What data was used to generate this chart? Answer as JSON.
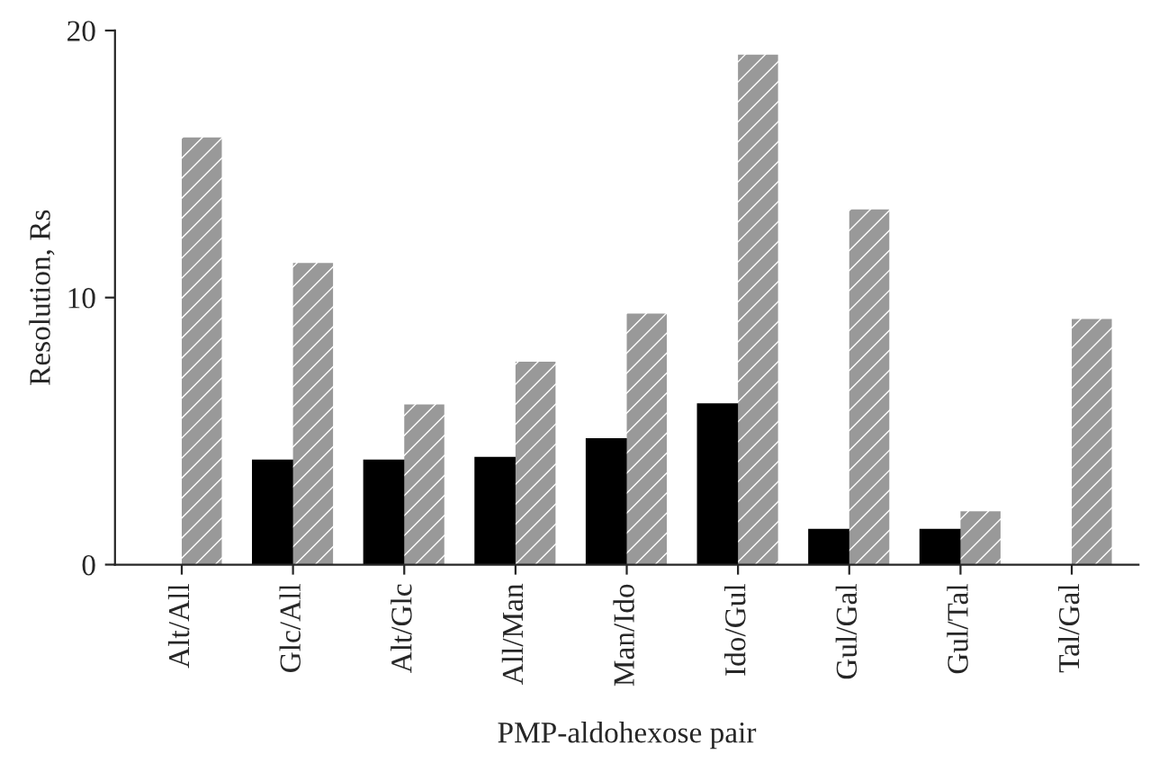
{
  "chart_data": {
    "type": "bar",
    "xlabel": "PMP-aldohexose pair",
    "ylabel": "Resolution, Rs",
    "categories": [
      "Alt/All",
      "Glc/All",
      "Alt/Glc",
      "All/Man",
      "Man/Ido",
      "Ido/Gul",
      "Gul/Gal",
      "Gul/Tal",
      "Tal/Gal"
    ],
    "series": [
      {
        "color": "#000000",
        "values": [
          null,
          3.9,
          3.9,
          4.0,
          4.7,
          6.0,
          1.3,
          1.3,
          null
        ]
      },
      {
        "color": "#999999",
        "values": [
          16.0,
          11.3,
          6.0,
          7.6,
          9.4,
          19.1,
          13.3,
          2.0,
          9.2
        ]
      }
    ],
    "ylim": [
      0,
      20
    ],
    "yticks": [
      0,
      10,
      20
    ]
  }
}
